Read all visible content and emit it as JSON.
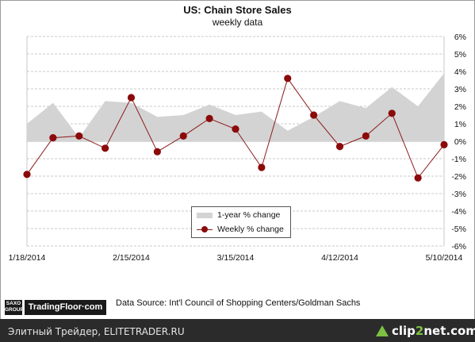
{
  "chart_data": {
    "type": "line",
    "title": "US: Chain Store Sales",
    "subtitle": "weekly data",
    "xlabel": "",
    "ylabel": "",
    "x_tick_labels": [
      "1/18/2014",
      "2/15/2014",
      "3/15/2014",
      "4/12/2014",
      "5/10/2014"
    ],
    "y_tick_labels": [
      "6%",
      "5%",
      "4%",
      "3%",
      "2%",
      "1%",
      "0%",
      "-1%",
      "-2%",
      "-3%",
      "-4%",
      "-5%",
      "-6%"
    ],
    "ylim": [
      -6,
      6
    ],
    "grid": true,
    "legend_position": "bottom-center",
    "x": [
      "1/18/2014",
      "1/25/2014",
      "2/1/2014",
      "2/8/2014",
      "2/15/2014",
      "2/22/2014",
      "3/1/2014",
      "3/8/2014",
      "3/15/2014",
      "3/22/2014",
      "3/29/2014",
      "4/5/2014",
      "4/12/2014",
      "4/19/2014",
      "4/26/2014",
      "5/3/2014",
      "5/10/2014"
    ],
    "series": [
      {
        "name": "1-year % change",
        "kind": "area",
        "color": "#d3d3d3",
        "values": [
          1.0,
          2.2,
          0.2,
          2.3,
          2.2,
          1.4,
          1.5,
          2.1,
          1.5,
          1.7,
          0.6,
          1.4,
          2.3,
          1.9,
          3.1,
          2.0,
          3.9
        ]
      },
      {
        "name": "Weekly % change",
        "kind": "line",
        "color": "#8b0a0a",
        "values": [
          -1.9,
          0.2,
          0.3,
          -0.4,
          2.5,
          -0.6,
          0.3,
          1.3,
          0.7,
          -1.5,
          3.6,
          1.5,
          -0.3,
          0.3,
          1.6,
          -2.1,
          -0.2
        ]
      }
    ]
  },
  "source_text": "Data Source:  Int'l Council of Shopping Centers/Goldman  Sachs",
  "logos": {
    "saxo": "SAXO GROUP",
    "tradingfloor": "TradingFloor·com"
  },
  "footer": {
    "left_text": "Элитный Трейдер, ELITETRADER.RU",
    "clip_prefix": "clip",
    "clip_num": "2",
    "clip_suffix": "net.com"
  }
}
